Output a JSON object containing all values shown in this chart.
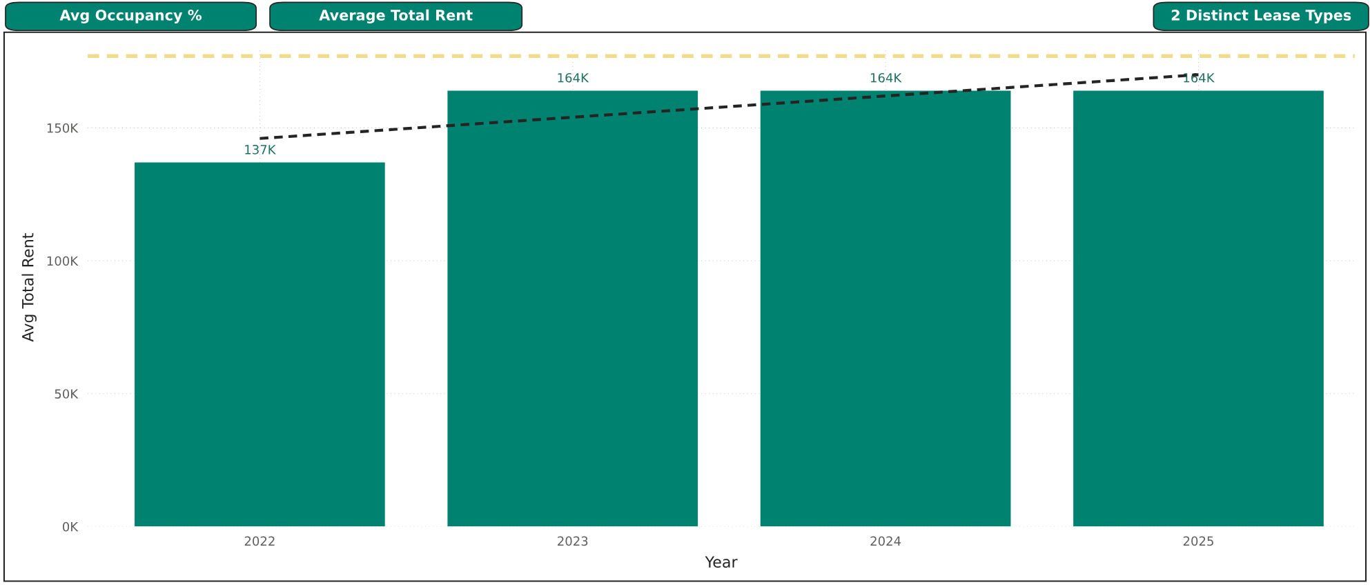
{
  "chart_data": {
    "type": "bar",
    "xlabel": "Year",
    "ylabel": "Avg Total Rent",
    "categories": [
      "2022",
      "2023",
      "2024",
      "2025"
    ],
    "series": [
      {
        "color": "#008270",
        "values": [
          137,
          164,
          164,
          164
        ],
        "value_labels": [
          "137K",
          "164K",
          "164K",
          "164K"
        ]
      },
      {
        "type": "line",
        "color": "#252423",
        "values": [
          146,
          154,
          162,
          170
        ],
        "line_style": "dashed"
      }
    ],
    "ylim": [
      0,
      180
    ],
    "yticks": [
      {
        "value": 0,
        "label": "0K"
      },
      {
        "value": 50,
        "label": "50K"
      },
      {
        "value": 100,
        "label": "100K"
      },
      {
        "value": 150,
        "label": "150K"
      }
    ],
    "ref_lines": [
      {
        "axis": "y",
        "value": 177,
        "color": "#f0dc8c",
        "line_style": "dashed"
      }
    ],
    "grid": true,
    "legend": false,
    "annotations": [
      "Avg Occupancy %",
      "Average Total Rent",
      "2 Distinct Lease Types"
    ]
  }
}
